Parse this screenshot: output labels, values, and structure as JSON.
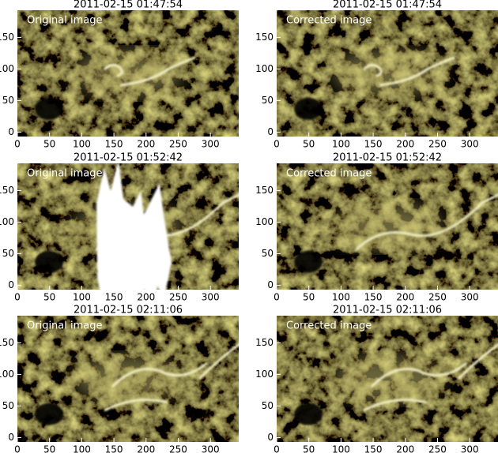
{
  "chart_data": [
    {
      "type": "image",
      "title": "2011-02-15 01:47:54",
      "label": "Original image",
      "xlim": [
        0,
        344
      ],
      "ylim": [
        -7,
        193
      ],
      "xticks": [
        0,
        50,
        100,
        150,
        200,
        250,
        300
      ],
      "yticks": [
        0,
        50,
        100,
        150
      ]
    },
    {
      "type": "image",
      "title": "2011-02-15 01:47:54",
      "label": "Corrected image",
      "xlim": [
        0,
        344
      ],
      "ylim": [
        -7,
        193
      ],
      "xticks": [
        0,
        50,
        100,
        150,
        200,
        250,
        300
      ],
      "yticks": [
        0,
        50,
        100,
        150
      ]
    },
    {
      "type": "image",
      "title": "2011-02-15 01:52:42",
      "label": "Original image",
      "xlim": [
        0,
        344
      ],
      "ylim": [
        -7,
        193
      ],
      "xticks": [
        0,
        50,
        100,
        150,
        200,
        250,
        300
      ],
      "yticks": [
        0,
        50,
        100,
        150
      ]
    },
    {
      "type": "image",
      "title": "2011-02-15 01:52:42",
      "label": "Corrected image",
      "xlim": [
        0,
        344
      ],
      "ylim": [
        -7,
        193
      ],
      "xticks": [
        0,
        50,
        100,
        150,
        200,
        250,
        300
      ],
      "yticks": [
        0,
        50,
        100,
        150
      ]
    },
    {
      "type": "image",
      "title": "2011-02-15 02:11:06",
      "label": "Original image",
      "xlim": [
        0,
        344
      ],
      "ylim": [
        -7,
        193
      ],
      "xticks": [
        0,
        50,
        100,
        150,
        200,
        250,
        300
      ],
      "yticks": [
        0,
        50,
        100,
        150
      ]
    },
    {
      "type": "image",
      "title": "2011-02-15 02:11:06",
      "label": "Corrected image",
      "xlim": [
        0,
        344
      ],
      "ylim": [
        -7,
        193
      ],
      "xticks": [
        0,
        50,
        100,
        150,
        200,
        250,
        300
      ],
      "yticks": [
        0,
        50,
        100,
        150
      ]
    }
  ]
}
